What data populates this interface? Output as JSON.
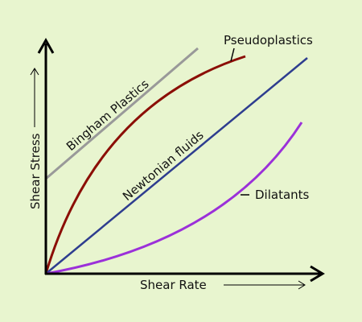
{
  "axes": {
    "x_label": "Shear Rate",
    "y_label": "Shear Stress"
  },
  "curves": [
    {
      "label": "Bingham Plastics"
    },
    {
      "label": "Pseudoplastics"
    },
    {
      "label": "Newtonian fluids"
    },
    {
      "label": "Dilatants"
    }
  ]
}
